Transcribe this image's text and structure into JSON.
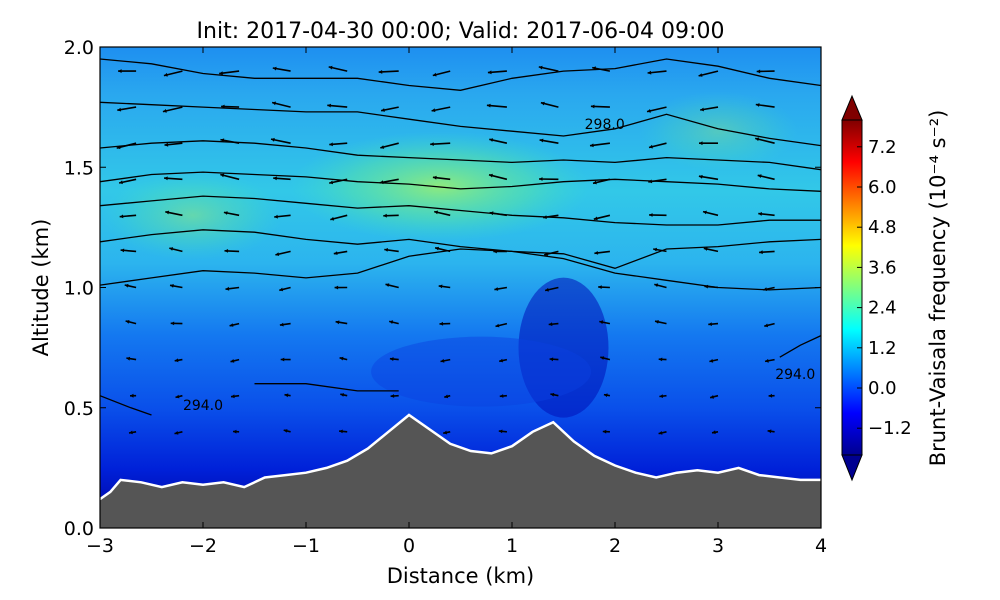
{
  "chart_data": {
    "type": "heatmap",
    "title": "Init: 2017-04-30 00:00; Valid: 2017-06-04 09:00",
    "xlabel": "Distance (km)",
    "ylabel": "Altitude (km)",
    "xlim": [
      -3,
      4
    ],
    "ylim": [
      0.0,
      2.0
    ],
    "xticks": [
      -3,
      -2,
      -1,
      0,
      1,
      2,
      3,
      4
    ],
    "xtick_labels": [
      "−3",
      "−2",
      "−1",
      "0",
      "1",
      "2",
      "3",
      "4"
    ],
    "yticks": [
      0.0,
      0.5,
      1.0,
      1.5,
      2.0
    ],
    "ytick_labels": [
      "0.0",
      "0.5",
      "1.0",
      "1.5",
      "2.0"
    ],
    "grid": false,
    "colorbar": {
      "label": "Brunt-Vaisala frequency (10⁻⁴ s⁻²)",
      "range": [
        -2.0,
        8.0
      ],
      "extend": "both",
      "ticks": [
        -1.2,
        0.0,
        1.2,
        2.4,
        3.6,
        4.8,
        6.0,
        7.2
      ],
      "tick_labels": [
        "−1.2",
        "0.0",
        "1.2",
        "2.4",
        "3.6",
        "4.8",
        "6.0",
        "7.2"
      ],
      "colormap": "jet"
    },
    "terrain": {
      "color": "#555555",
      "outline_color": "#ffffff",
      "profile": [
        [
          -3.0,
          0.12
        ],
        [
          -2.9,
          0.15
        ],
        [
          -2.8,
          0.2
        ],
        [
          -2.6,
          0.19
        ],
        [
          -2.4,
          0.17
        ],
        [
          -2.2,
          0.19
        ],
        [
          -2.0,
          0.18
        ],
        [
          -1.8,
          0.19
        ],
        [
          -1.6,
          0.17
        ],
        [
          -1.4,
          0.21
        ],
        [
          -1.2,
          0.22
        ],
        [
          -1.0,
          0.23
        ],
        [
          -0.8,
          0.25
        ],
        [
          -0.6,
          0.28
        ],
        [
          -0.4,
          0.33
        ],
        [
          -0.2,
          0.4
        ],
        [
          0.0,
          0.47
        ],
        [
          0.2,
          0.41
        ],
        [
          0.4,
          0.35
        ],
        [
          0.6,
          0.32
        ],
        [
          0.8,
          0.31
        ],
        [
          1.0,
          0.34
        ],
        [
          1.2,
          0.4
        ],
        [
          1.4,
          0.44
        ],
        [
          1.6,
          0.36
        ],
        [
          1.8,
          0.3
        ],
        [
          2.0,
          0.26
        ],
        [
          2.2,
          0.23
        ],
        [
          2.4,
          0.21
        ],
        [
          2.6,
          0.23
        ],
        [
          2.8,
          0.24
        ],
        [
          3.0,
          0.23
        ],
        [
          3.2,
          0.25
        ],
        [
          3.4,
          0.22
        ],
        [
          3.6,
          0.21
        ],
        [
          3.8,
          0.2
        ],
        [
          4.0,
          0.2
        ]
      ]
    },
    "contour_labels": [
      {
        "text": "298.0",
        "x": 1.9,
        "y": 1.66
      },
      {
        "text": "294.0",
        "x": -2.0,
        "y": 0.49
      },
      {
        "text": "294.0",
        "x": 3.75,
        "y": 0.62
      }
    ],
    "contours": [
      {
        "x": [
          -3.0,
          -2.5,
          -2.0,
          -1.5,
          -1.0,
          -0.5,
          0.0,
          0.5,
          1.0,
          1.5,
          2.0,
          2.5,
          3.0,
          3.5,
          4.0
        ],
        "y": [
          1.95,
          1.93,
          1.89,
          1.87,
          1.87,
          1.87,
          1.84,
          1.82,
          1.87,
          1.9,
          1.91,
          1.95,
          1.92,
          1.87,
          1.84
        ]
      },
      {
        "x": [
          -3.0,
          -2.5,
          -2.0,
          -1.5,
          -1.0,
          -0.5,
          0.0,
          0.5,
          1.0,
          1.5,
          2.0,
          2.5,
          3.0,
          3.5,
          4.0
        ],
        "y": [
          1.77,
          1.76,
          1.75,
          1.74,
          1.73,
          1.73,
          1.7,
          1.67,
          1.65,
          1.63,
          1.66,
          1.72,
          1.66,
          1.62,
          1.59
        ]
      },
      {
        "x": [
          -3.0,
          -2.5,
          -2.0,
          -1.5,
          -1.0,
          -0.5,
          0.0,
          0.5,
          1.0,
          1.5,
          2.0,
          2.5,
          3.0,
          3.5,
          4.0
        ],
        "y": [
          1.58,
          1.6,
          1.61,
          1.6,
          1.58,
          1.55,
          1.54,
          1.53,
          1.52,
          1.53,
          1.52,
          1.54,
          1.53,
          1.52,
          1.49
        ]
      },
      {
        "x": [
          -3.0,
          -2.5,
          -2.0,
          -1.5,
          -1.0,
          -0.5,
          0.0,
          0.5,
          1.0,
          1.5,
          2.0,
          2.5,
          3.0,
          3.5,
          4.0
        ],
        "y": [
          1.44,
          1.47,
          1.48,
          1.47,
          1.46,
          1.44,
          1.43,
          1.41,
          1.42,
          1.44,
          1.45,
          1.44,
          1.43,
          1.41,
          1.4
        ]
      },
      {
        "x": [
          -3.0,
          -2.5,
          -2.0,
          -1.5,
          -1.0,
          -0.5,
          0.0,
          0.5,
          1.0,
          1.5,
          2.0,
          2.5,
          3.0,
          3.5,
          4.0
        ],
        "y": [
          1.34,
          1.36,
          1.38,
          1.37,
          1.35,
          1.33,
          1.34,
          1.32,
          1.3,
          1.29,
          1.27,
          1.26,
          1.26,
          1.28,
          1.28
        ]
      },
      {
        "x": [
          -3.0,
          -2.5,
          -2.0,
          -1.5,
          -1.0,
          -0.5,
          0.0,
          0.5,
          1.0,
          1.5,
          2.0,
          2.5,
          3.0,
          3.5,
          4.0
        ],
        "y": [
          1.19,
          1.22,
          1.24,
          1.23,
          1.2,
          1.18,
          1.2,
          1.17,
          1.15,
          1.14,
          1.08,
          1.16,
          1.17,
          1.19,
          1.2
        ]
      },
      {
        "x": [
          -3.0,
          -2.5,
          -2.0,
          -1.5,
          -1.0,
          -0.5,
          0.0,
          0.5,
          1.0,
          1.5,
          2.0,
          2.5,
          3.0,
          3.5,
          4.0
        ],
        "y": [
          1.01,
          1.04,
          1.07,
          1.06,
          1.04,
          1.06,
          1.13,
          1.16,
          1.15,
          1.12,
          1.06,
          1.03,
          1.0,
          0.99,
          1.0
        ]
      },
      {
        "x": [
          -3.0,
          -2.7,
          -2.5
        ],
        "y": [
          0.55,
          0.5,
          0.47
        ]
      },
      {
        "x": [
          -1.5,
          -1.0,
          -0.5,
          -0.1
        ],
        "y": [
          0.6,
          0.6,
          0.57,
          0.57
        ]
      },
      {
        "x": [
          3.6,
          3.8,
          4.0
        ],
        "y": [
          0.71,
          0.76,
          0.8
        ]
      }
    ]
  }
}
